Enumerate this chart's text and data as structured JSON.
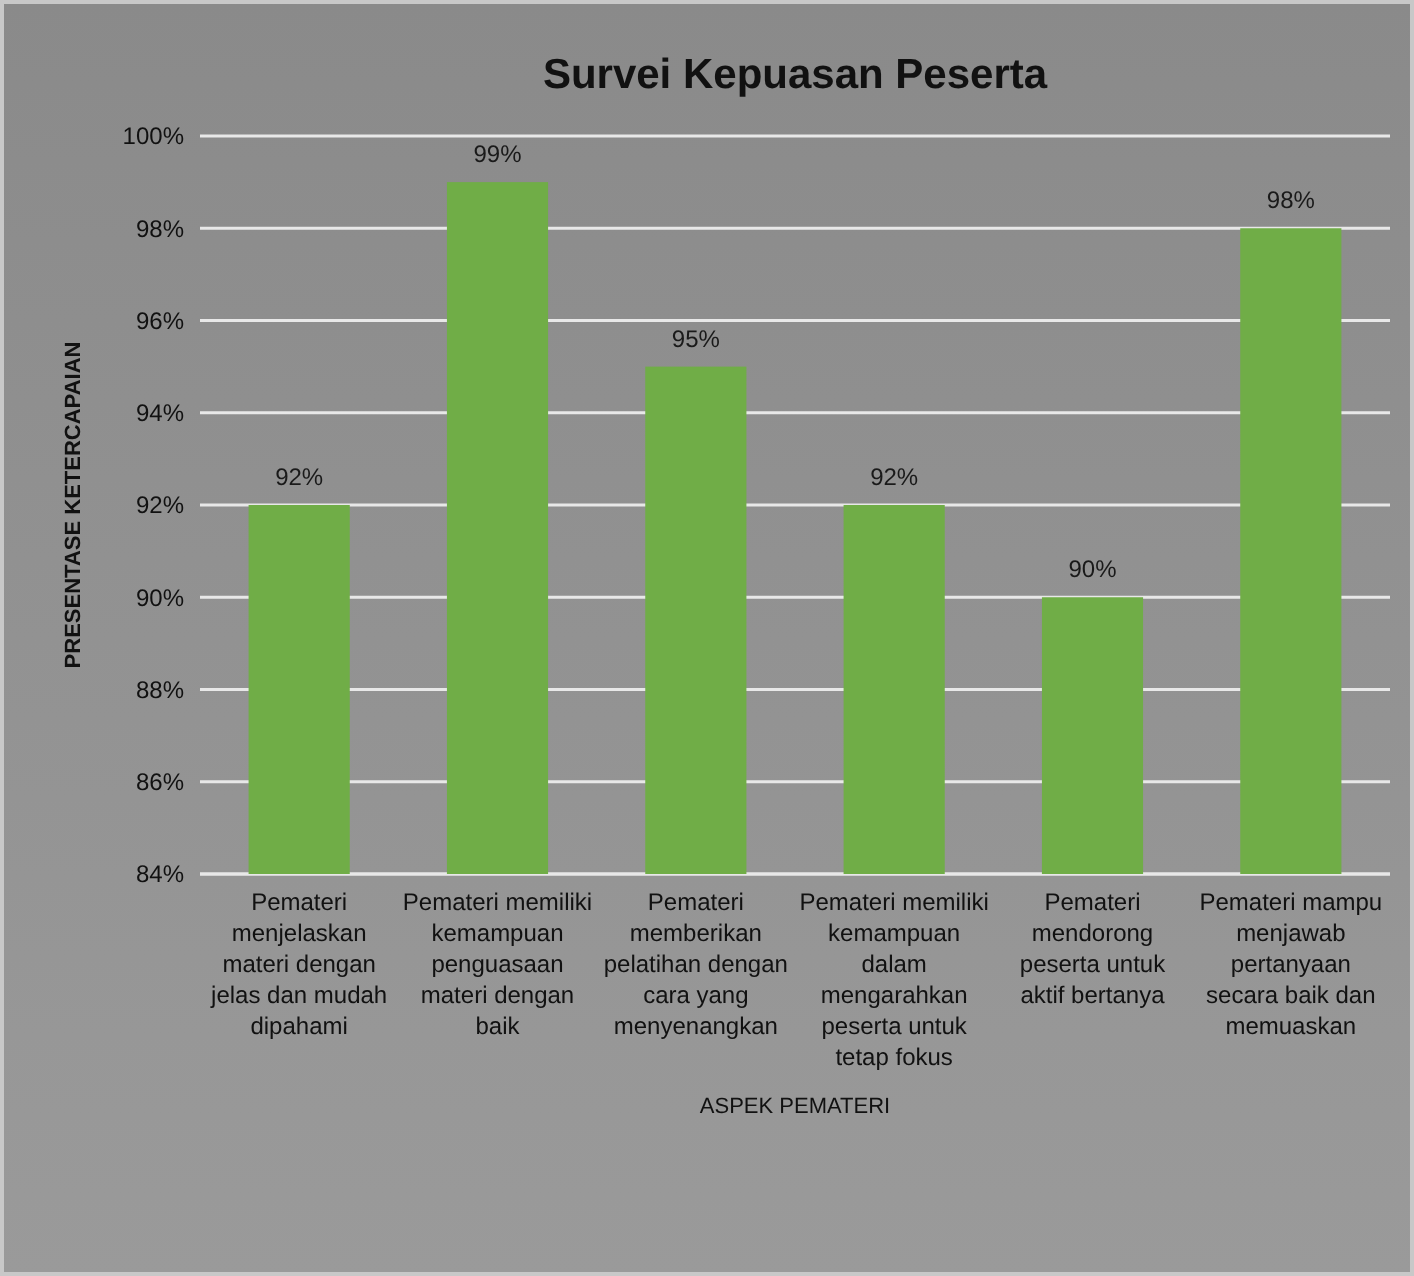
{
  "chart_data": {
    "type": "bar",
    "title": "Survei Kepuasan Peserta",
    "xlabel": "ASPEK PEMATERI",
    "ylabel": "PRESENTASE KETERCAPAIAN",
    "categories": [
      "Pemateri menjelaskan materi dengan jelas dan mudah dipahami",
      "Pemateri memiliki kemampuan penguasaan materi dengan baik",
      "Pemateri memberikan pelatihan dengan cara yang menyenangkan",
      "Pemateri memiliki kemampuan dalam mengarahkan peserta untuk tetap fokus",
      "Pemateri mendorong peserta untuk aktif bertanya",
      "Pemateri mampu menjawab pertanyaan secara baik dan memuaskan"
    ],
    "values": [
      92,
      99,
      95,
      92,
      90,
      98
    ],
    "value_labels": [
      "92%",
      "99%",
      "95%",
      "92%",
      "90%",
      "98%"
    ],
    "color": "#70ad47",
    "ylim": [
      84,
      100
    ],
    "yticks": [
      {
        "value": 84,
        "label": "84%"
      },
      {
        "value": 86,
        "label": "86%"
      },
      {
        "value": 88,
        "label": "88%"
      },
      {
        "value": 90,
        "label": "90%"
      },
      {
        "value": 92,
        "label": "92%"
      },
      {
        "value": 94,
        "label": "94%"
      },
      {
        "value": 96,
        "label": "96%"
      },
      {
        "value": 98,
        "label": "98%"
      },
      {
        "value": 100,
        "label": "100%"
      }
    ],
    "grid": "y"
  }
}
